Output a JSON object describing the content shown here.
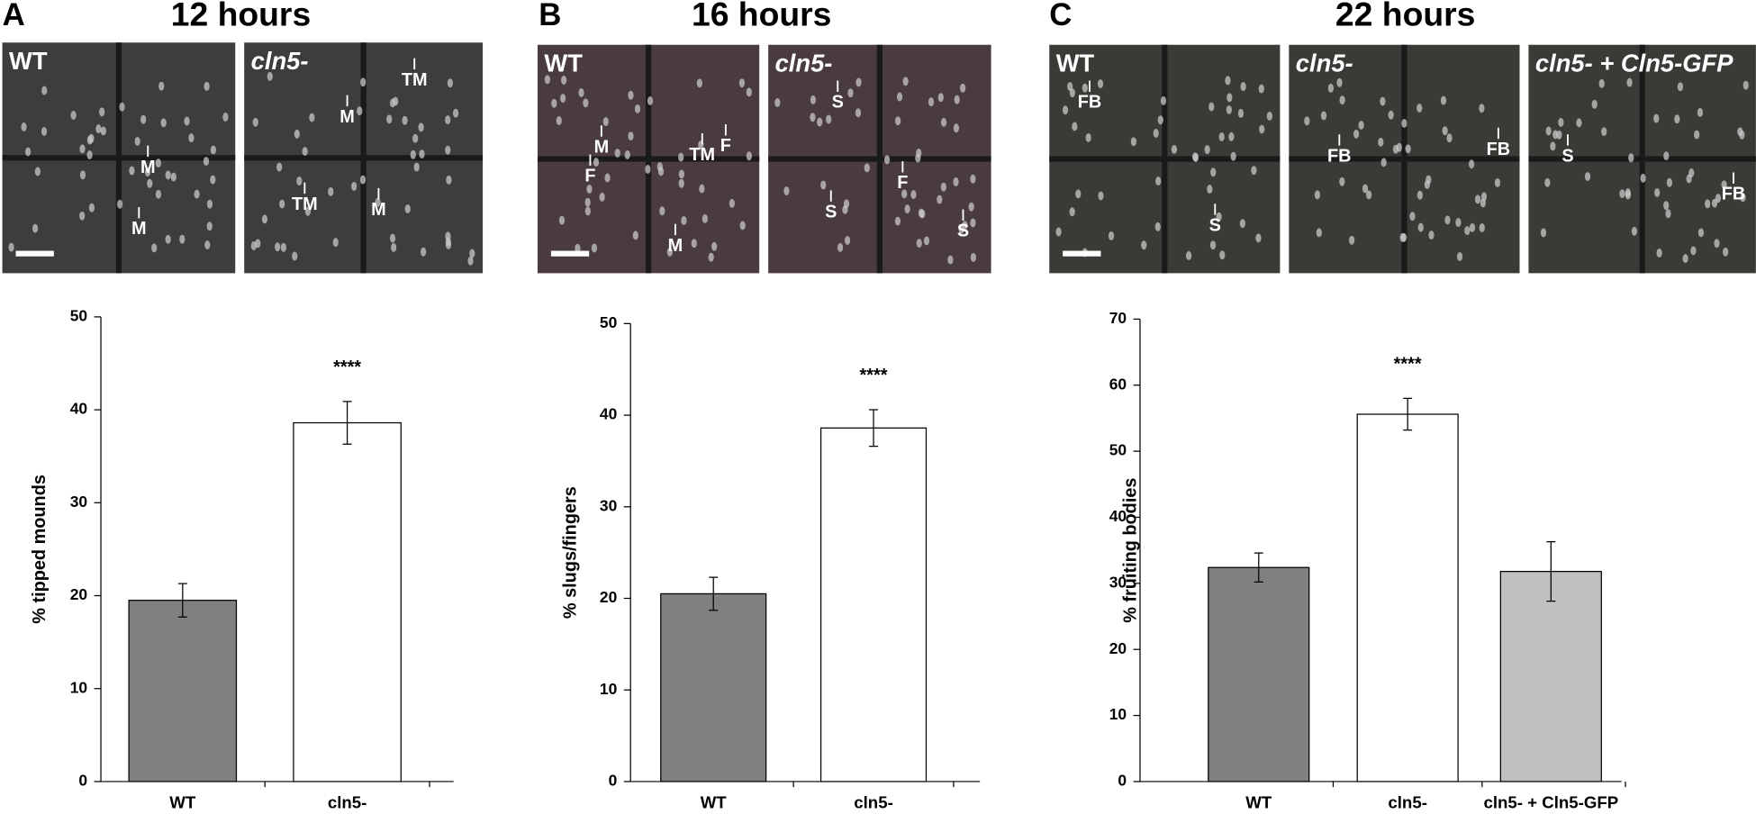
{
  "chart_data": [
    {
      "type": "bar",
      "panel": "A",
      "title": "12 hours",
      "images": [
        {
          "label": "WT",
          "annotations": [
            "M",
            "M"
          ]
        },
        {
          "label": "cln5-",
          "annotations": [
            "TM",
            "M",
            "TM",
            "M"
          ]
        }
      ],
      "y_label": "% tipped mounds",
      "categories": [
        "WT",
        "cln5-"
      ],
      "values": [
        19.5,
        38.6
      ],
      "errors": [
        1.8,
        2.3
      ],
      "colors": [
        "#808080",
        "#ffffff"
      ],
      "significance": [
        null,
        "****"
      ],
      "ylim": [
        0,
        50
      ],
      "yticks": [
        0,
        10,
        20,
        30,
        40,
        50
      ]
    },
    {
      "type": "bar",
      "panel": "B",
      "title": "16 hours",
      "images": [
        {
          "label": "WT",
          "annotations": [
            "M",
            "TM",
            "F",
            "F",
            "M"
          ]
        },
        {
          "label": "cln5-",
          "annotations": [
            "S",
            "F",
            "S",
            "S"
          ]
        }
      ],
      "y_label": "% slugs/fingers",
      "categories": [
        "WT",
        "cln5-"
      ],
      "values": [
        20.5,
        38.6
      ],
      "errors": [
        1.8,
        2.0
      ],
      "colors": [
        "#808080",
        "#ffffff"
      ],
      "significance": [
        null,
        "****"
      ],
      "ylim": [
        0,
        50
      ],
      "yticks": [
        0,
        10,
        20,
        30,
        40,
        50
      ]
    },
    {
      "type": "bar",
      "panel": "C",
      "title": "22 hours",
      "images": [
        {
          "label": "WT",
          "annotations": [
            "FB",
            "S"
          ]
        },
        {
          "label": "cln5-",
          "annotations": [
            "FB",
            "FB"
          ]
        },
        {
          "label": "cln5- + Cln5-GFP",
          "annotations": [
            "S",
            "FB"
          ]
        }
      ],
      "y_label": "% fruiting bodies",
      "categories": [
        "WT",
        "cln5-",
        "cln5- + Cln5-GFP"
      ],
      "values": [
        32.4,
        55.6,
        31.8
      ],
      "errors": [
        2.2,
        2.4,
        4.5
      ],
      "colors": [
        "#808080",
        "#ffffff",
        "#c0c0c0"
      ],
      "significance": [
        null,
        "****",
        null
      ],
      "ylim": [
        0,
        70
      ],
      "yticks": [
        0,
        10,
        20,
        30,
        40,
        50,
        60,
        70
      ]
    }
  ]
}
